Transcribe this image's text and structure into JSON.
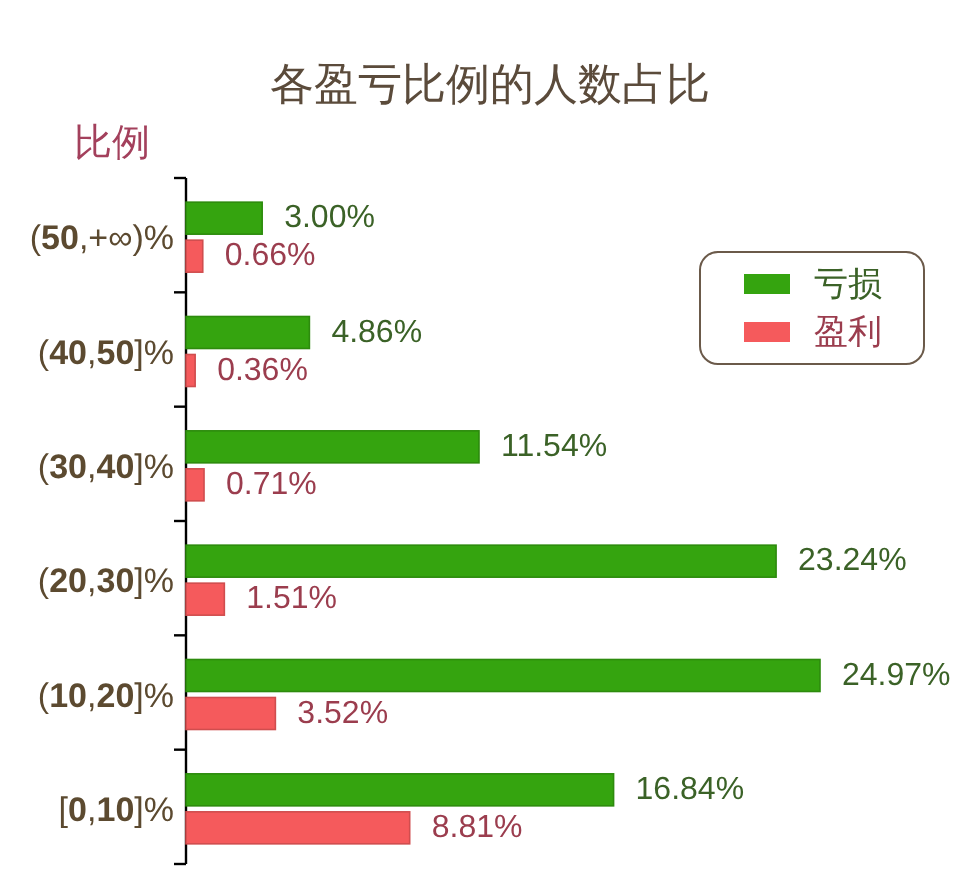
{
  "chart_data": {
    "type": "bar",
    "orientation": "horizontal",
    "title": "各盈亏比例的人数占比",
    "ylabel": "比例",
    "categories": [
      "(50,+∞)%",
      "(40,50]%",
      "(30,40]%",
      "(20,30]%",
      "(10,20]%",
      "[0,10]%"
    ],
    "series": [
      {
        "name": "亏损",
        "color": "#35a40f",
        "values": [
          3.0,
          4.86,
          11.54,
          23.24,
          24.97,
          16.84
        ],
        "value_labels": [
          "3.00%",
          "4.86%",
          "11.54%",
          "23.24%",
          "24.97%",
          "16.84%"
        ]
      },
      {
        "name": "盈利",
        "color": "#f55a5c",
        "values": [
          0.66,
          0.36,
          0.71,
          1.51,
          3.52,
          8.81
        ],
        "value_labels": [
          "0.66%",
          "0.36%",
          "0.71%",
          "1.51%",
          "3.52%",
          "8.81%"
        ]
      }
    ],
    "legend": "top right"
  }
}
